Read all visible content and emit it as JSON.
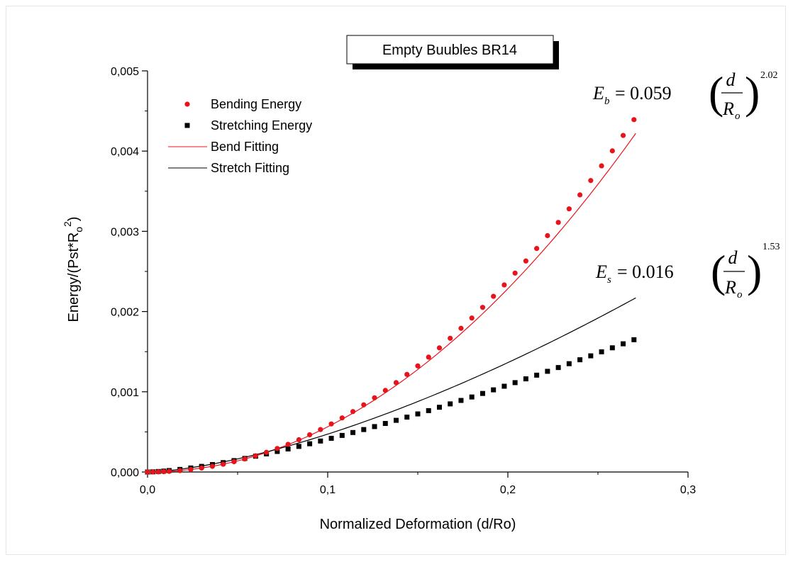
{
  "chart_data": {
    "type": "scatter",
    "title": "Empty Buubles BR14",
    "xlabel": "Normalized Deformation (d/Ro)",
    "ylabel": {
      "main": "Energy/(Pst*R",
      "sub": "o",
      "sup": "2",
      "close": ")"
    },
    "xlim": [
      0,
      0.3
    ],
    "ylim": [
      0,
      0.005
    ],
    "xticks": [
      {
        "value": 0,
        "label": "0,0"
      },
      {
        "value": 0.1,
        "label": "0,1"
      },
      {
        "value": 0.2,
        "label": "0,2"
      },
      {
        "value": 0.3,
        "label": "0,3"
      }
    ],
    "yticks": [
      {
        "value": 0,
        "label": "0,000"
      },
      {
        "value": 0.001,
        "label": "0,001"
      },
      {
        "value": 0.002,
        "label": "0,002"
      },
      {
        "value": 0.003,
        "label": "0,003"
      },
      {
        "value": 0.004,
        "label": "0,004"
      },
      {
        "value": 0.005,
        "label": "0,005"
      }
    ],
    "grid": false,
    "legend_position": "top-left",
    "series": [
      {
        "name": "Bending Energy",
        "kind": "points",
        "marker": "circle",
        "color": "#e8141b",
        "x": [
          0.0,
          0.003,
          0.006,
          0.009,
          0.012,
          0.018,
          0.024,
          0.03,
          0.036,
          0.042,
          0.048,
          0.054,
          0.06,
          0.066,
          0.072,
          0.078,
          0.084,
          0.09,
          0.096,
          0.102,
          0.108,
          0.114,
          0.12,
          0.126,
          0.132,
          0.138,
          0.144,
          0.15,
          0.156,
          0.162,
          0.168,
          0.174,
          0.18,
          0.186,
          0.192,
          0.198,
          0.204,
          0.21,
          0.216,
          0.222,
          0.228,
          0.234,
          0.24,
          0.246,
          0.252,
          0.258,
          0.264,
          0.27
        ],
        "y": [
          0.0,
          1e-06,
          2e-06,
          4e-06,
          8e-06,
          1.7e-05,
          3.1e-05,
          4.9e-05,
          7.1e-05,
          9.7e-05,
          0.000128,
          0.000163,
          0.000202,
          0.000245,
          0.000293,
          0.000345,
          0.000402,
          0.000464,
          0.000529,
          0.000599,
          0.000674,
          0.000753,
          0.000837,
          0.000925,
          0.001017,
          0.001114,
          0.001216,
          0.001322,
          0.001432,
          0.001547,
          0.001667,
          0.001791,
          0.001919,
          0.002052,
          0.00219,
          0.002332,
          0.002479,
          0.00263,
          0.002786,
          0.002946,
          0.003111,
          0.00328,
          0.003454,
          0.003633,
          0.003816,
          0.004003,
          0.004195,
          0.004392
        ]
      },
      {
        "name": "Stretching Energy",
        "kind": "points",
        "marker": "square",
        "color": "#000000",
        "x": [
          0.0,
          0.003,
          0.006,
          0.009,
          0.012,
          0.018,
          0.024,
          0.03,
          0.036,
          0.042,
          0.048,
          0.054,
          0.06,
          0.066,
          0.072,
          0.078,
          0.084,
          0.09,
          0.096,
          0.102,
          0.108,
          0.114,
          0.12,
          0.126,
          0.132,
          0.138,
          0.144,
          0.15,
          0.156,
          0.162,
          0.168,
          0.174,
          0.18,
          0.186,
          0.192,
          0.198,
          0.204,
          0.21,
          0.216,
          0.222,
          0.228,
          0.234,
          0.24,
          0.246,
          0.252,
          0.258,
          0.264,
          0.27
        ],
        "y": [
          0.0,
          2e-06,
          6e-06,
          1.1e-05,
          1.8e-05,
          3.2e-05,
          5e-05,
          7e-05,
          9.3e-05,
          0.000117,
          0.000142,
          0.000169,
          0.000197,
          0.000226,
          0.000256,
          0.000287,
          0.000319,
          0.000352,
          0.000386,
          0.00042,
          0.000456,
          0.000492,
          0.000529,
          0.000566,
          0.000605,
          0.000644,
          0.000684,
          0.000724,
          0.000765,
          0.000807,
          0.000849,
          0.000892,
          0.000935,
          0.000979,
          0.001024,
          0.001069,
          0.001114,
          0.001161,
          0.001207,
          0.001255,
          0.001302,
          0.00135,
          0.001399,
          0.001448,
          0.001498,
          0.001548,
          0.001598,
          0.001649
        ]
      },
      {
        "name": "Bend Fitting",
        "kind": "line",
        "color": "#e8141b",
        "fit": {
          "a": 0.059,
          "b": 2.02
        },
        "xrange": [
          0,
          0.271
        ]
      },
      {
        "name": "Stretch Fitting",
        "kind": "line",
        "color": "#000000",
        "fit": {
          "a": 0.016,
          "b": 1.53
        },
        "xrange": [
          0,
          0.271
        ]
      }
    ],
    "annotations": [
      {
        "lhs": "E",
        "sub": "b",
        "eq": "= 0.059",
        "num": "d",
        "den": "R",
        "den_sub": "o",
        "exp": "2.02"
      },
      {
        "lhs": "E",
        "sub": "s",
        "eq": "= 0.016",
        "num": "d",
        "den": "R",
        "den_sub": "o",
        "exp": "1.53"
      }
    ]
  }
}
